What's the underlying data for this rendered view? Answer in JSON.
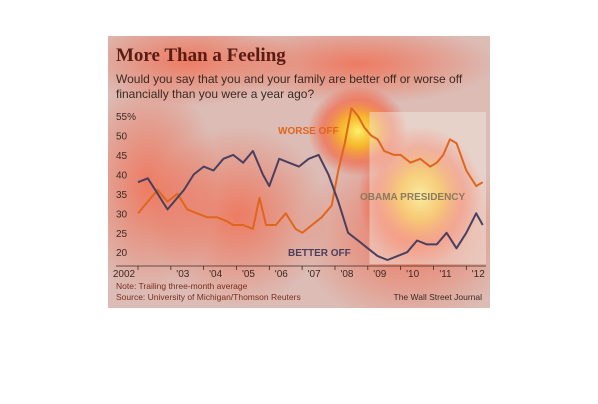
{
  "title": "More Than a Feeling",
  "subtitle": "Would you say that you and your family are better off or worse off financially than you were a year ago?",
  "note": "Note: Trailing three-month average",
  "source": "Source: University of Michigan/Thomson Reuters",
  "credit": "The Wall Street Journal",
  "chart_data": {
    "type": "line",
    "ylim": [
      18,
      55
    ],
    "yticks": [
      20,
      25,
      30,
      35,
      40,
      45,
      50,
      55
    ],
    "ytick_labels": [
      "20",
      "25",
      "30",
      "35",
      "40",
      "45",
      "50",
      "55%"
    ],
    "xlim": [
      2002.0,
      2012.6
    ],
    "xticks": [
      2002,
      2003,
      2004,
      2005,
      2006,
      2007,
      2008,
      2009,
      2010,
      2011,
      2012
    ],
    "xtick_labels": [
      "2002",
      "'03",
      "'04",
      "'05",
      "'06",
      "'07",
      "'08",
      "'09",
      "'10",
      "'11",
      "'12"
    ],
    "series": [
      {
        "name": "WORSE OFF",
        "color": "#e0661d",
        "x": [
          2002.0,
          2002.3,
          2002.6,
          2002.9,
          2003.2,
          2003.5,
          2003.8,
          2004.1,
          2004.4,
          2004.7,
          2004.9,
          2005.2,
          2005.5,
          2005.7,
          2005.9,
          2006.2,
          2006.5,
          2006.8,
          2007.0,
          2007.3,
          2007.6,
          2007.9,
          2008.1,
          2008.3,
          2008.5,
          2008.7,
          2008.9,
          2009.1,
          2009.3,
          2009.5,
          2009.8,
          2010.0,
          2010.3,
          2010.6,
          2010.9,
          2011.1,
          2011.3,
          2011.5,
          2011.7,
          2012.0,
          2012.3,
          2012.5
        ],
        "values": [
          30,
          33,
          36,
          33,
          35,
          31,
          30,
          29,
          29,
          28,
          27,
          27,
          26,
          34,
          27,
          27,
          30,
          26,
          25,
          27,
          29,
          32,
          41,
          48,
          57,
          55,
          52,
          50,
          49,
          46,
          45,
          45,
          43,
          44,
          42,
          43,
          45,
          49,
          48,
          41,
          37,
          38
        ]
      },
      {
        "name": "BETTER OFF",
        "color": "#4a3f5e",
        "x": [
          2002.0,
          2002.3,
          2002.6,
          2002.9,
          2003.1,
          2003.4,
          2003.7,
          2004.0,
          2004.3,
          2004.6,
          2004.9,
          2005.2,
          2005.5,
          2005.8,
          2006.0,
          2006.3,
          2006.6,
          2006.9,
          2007.2,
          2007.5,
          2007.8,
          2008.1,
          2008.4,
          2008.7,
          2009.0,
          2009.3,
          2009.6,
          2009.9,
          2010.2,
          2010.5,
          2010.8,
          2011.1,
          2011.4,
          2011.7,
          2012.0,
          2012.3,
          2012.5
        ],
        "values": [
          38,
          39,
          35,
          31,
          33,
          36,
          40,
          42,
          41,
          44,
          45,
          43,
          46,
          40,
          37,
          44,
          43,
          42,
          44,
          45,
          40,
          33,
          25,
          23,
          21,
          19,
          18,
          19,
          20,
          23,
          22,
          22,
          25,
          21,
          25,
          30,
          27
        ]
      }
    ],
    "annotations": [
      "WORSE OFF",
      "BETTER OFF",
      "OBAMA PRESIDENCY"
    ],
    "shaded_period": [
      2009.05,
      2012.6
    ],
    "grid": false,
    "colors": {
      "background": "#e6e3de",
      "title": "#5a1b12",
      "axis_text": "#3b2a24",
      "heat_hot": "#fff200",
      "heat_warm": "#ff2a00"
    }
  }
}
